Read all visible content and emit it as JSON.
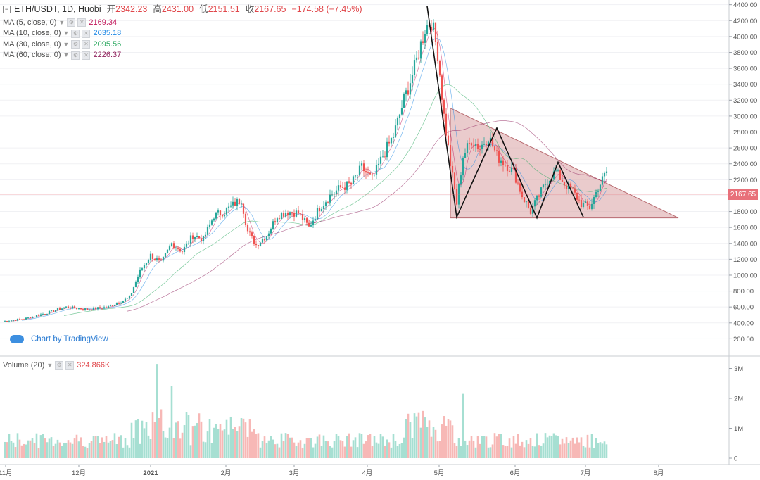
{
  "header": {
    "symbol": "ETH/USDT, 1D, Huobi",
    "open_label": "开",
    "open": "2342.23",
    "high_label": "高",
    "high": "2431.00",
    "low_label": "低",
    "low": "2151.51",
    "close_label": "收",
    "close": "2167.65",
    "change": "−174.58 (−7.45%)"
  },
  "indicators": [
    {
      "label": "MA (5, close, 0)",
      "value": "2169.34",
      "color": "#c2185b"
    },
    {
      "label": "MA (10, close, 0)",
      "value": "2035.18",
      "color": "#1e88e5"
    },
    {
      "label": "MA (30, close, 0)",
      "value": "2095.56",
      "color": "#26a65b"
    },
    {
      "label": "MA (60, close, 0)",
      "value": "2226.37",
      "color": "#8e1e5a"
    }
  ],
  "volume_panel": {
    "label": "Volume (20)",
    "value": "324.866K"
  },
  "watermark": "Chart by TradingView",
  "last_price_label": "2167.65",
  "colors": {
    "up": "#26a69a",
    "down": "#ef5350",
    "up_vol": "#a6dfd2",
    "down_vol": "#f7b8b6",
    "triangle": "#d9a0a2"
  },
  "chart_data": {
    "type": "candlestick",
    "price_axis": {
      "ticks": [
        200,
        400,
        600,
        800,
        1000,
        1200,
        1400,
        1600,
        1800,
        2000,
        2200,
        2400,
        2600,
        2800,
        3000,
        3200,
        3400,
        3600,
        3800,
        4000,
        4200,
        4400
      ]
    },
    "volume_axis": {
      "ticks": [
        "0",
        "1M",
        "2M",
        "3M"
      ]
    },
    "x_ticks": [
      "11月",
      "12月",
      "2021",
      "2月",
      "3月",
      "4月",
      "5月",
      "6月",
      "7月",
      "8月"
    ],
    "close_path": [
      {
        "d": 0,
        "v": 420
      },
      {
        "d": 10,
        "v": 450
      },
      {
        "d": 20,
        "v": 520
      },
      {
        "d": 30,
        "v": 600
      },
      {
        "d": 40,
        "v": 570
      },
      {
        "d": 50,
        "v": 600
      },
      {
        "d": 60,
        "v": 720
      },
      {
        "d": 65,
        "v": 1050
      },
      {
        "d": 70,
        "v": 1250
      },
      {
        "d": 75,
        "v": 1150
      },
      {
        "d": 80,
        "v": 1400
      },
      {
        "d": 85,
        "v": 1300
      },
      {
        "d": 90,
        "v": 1500
      },
      {
        "d": 95,
        "v": 1450
      },
      {
        "d": 100,
        "v": 1750
      },
      {
        "d": 105,
        "v": 1800
      },
      {
        "d": 110,
        "v": 1900
      },
      {
        "d": 113,
        "v": 1950
      },
      {
        "d": 116,
        "v": 1550
      },
      {
        "d": 120,
        "v": 1380
      },
      {
        "d": 125,
        "v": 1500
      },
      {
        "d": 130,
        "v": 1750
      },
      {
        "d": 135,
        "v": 1800
      },
      {
        "d": 140,
        "v": 1780
      },
      {
        "d": 145,
        "v": 1600
      },
      {
        "d": 150,
        "v": 1850
      },
      {
        "d": 155,
        "v": 2000
      },
      {
        "d": 160,
        "v": 2100
      },
      {
        "d": 165,
        "v": 2150
      },
      {
        "d": 170,
        "v": 2350
      },
      {
        "d": 175,
        "v": 2200
      },
      {
        "d": 180,
        "v": 2500
      },
      {
        "d": 185,
        "v": 2750
      },
      {
        "d": 190,
        "v": 3200
      },
      {
        "d": 195,
        "v": 3600
      },
      {
        "d": 200,
        "v": 4100
      },
      {
        "d": 203,
        "v": 4200
      },
      {
        "d": 206,
        "v": 3800
      },
      {
        "d": 209,
        "v": 3000
      },
      {
        "d": 212,
        "v": 2400
      },
      {
        "d": 215,
        "v": 1900
      },
      {
        "d": 218,
        "v": 2500
      },
      {
        "d": 222,
        "v": 2700
      },
      {
        "d": 226,
        "v": 2600
      },
      {
        "d": 230,
        "v": 2750
      },
      {
        "d": 234,
        "v": 2500
      },
      {
        "d": 238,
        "v": 2400
      },
      {
        "d": 242,
        "v": 2300
      },
      {
        "d": 246,
        "v": 2000
      },
      {
        "d": 250,
        "v": 1800
      },
      {
        "d": 254,
        "v": 2000
      },
      {
        "d": 258,
        "v": 2200
      },
      {
        "d": 262,
        "v": 2300
      },
      {
        "d": 266,
        "v": 2150
      },
      {
        "d": 270,
        "v": 2050
      },
      {
        "d": 274,
        "v": 1900
      },
      {
        "d": 278,
        "v": 1850
      },
      {
        "d": 282,
        "v": 2100
      },
      {
        "d": 286,
        "v": 2300
      }
    ],
    "triangle": [
      {
        "d": 212,
        "v": 3100
      },
      {
        "d": 212,
        "v": 1720
      },
      {
        "d": 320,
        "v": 1720
      }
    ],
    "zigzag": [
      {
        "d": 201,
        "v": 4380
      },
      {
        "d": 215,
        "v": 1730
      },
      {
        "d": 234,
        "v": 2850
      },
      {
        "d": 253,
        "v": 1720
      },
      {
        "d": 263,
        "v": 2420
      },
      {
        "d": 275,
        "v": 1730
      }
    ]
  }
}
